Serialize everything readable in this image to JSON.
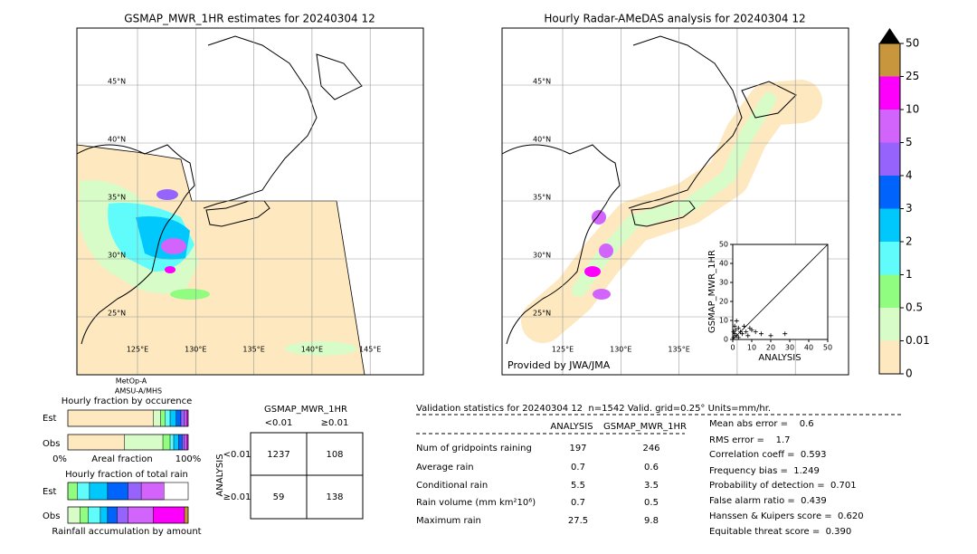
{
  "left_map": {
    "title": "GSMAP_MWR_1HR estimates for 20240304 12",
    "lat_labels": [
      "45°N",
      "40°N",
      "35°N",
      "30°N",
      "25°N"
    ],
    "lon_labels": [
      "125°E",
      "130°E",
      "135°E",
      "140°E",
      "145°E"
    ],
    "satellite": [
      "MetOp-A",
      "AMSU-A/MHS"
    ]
  },
  "right_map": {
    "title": "Hourly Radar-AMeDAS analysis for 20240304 12",
    "lat_labels": [
      "45°N",
      "40°N",
      "35°N",
      "30°N",
      "25°N"
    ],
    "lon_labels": [
      "125°E",
      "130°E",
      "135°E"
    ],
    "credit": "Provided by JWA/JMA"
  },
  "colorbar": {
    "labels": [
      "0",
      "0.01",
      "0.5",
      "1",
      "2",
      "3",
      "4",
      "5",
      "10",
      "25",
      "50"
    ],
    "colors": [
      "#fde8c0",
      "#d8fcc8",
      "#90fc80",
      "#60fcfc",
      "#00c8fc",
      "#0064fc",
      "#9664fc",
      "#d264fc",
      "#fc00fc",
      "#c8963c"
    ],
    "over_color": "#000000"
  },
  "fraction_occurrence": {
    "title": "Hourly fraction by occurence",
    "rows": [
      "Est",
      "Obs"
    ],
    "axis_labels": [
      "0%",
      "Areal fraction",
      "100%"
    ],
    "est": [
      71,
      6,
      4,
      4,
      5,
      4,
      3,
      2,
      1,
      0
    ],
    "obs": [
      47,
      32,
      6,
      3,
      4,
      3,
      2,
      2,
      1,
      0
    ]
  },
  "fraction_total": {
    "title": "Hourly fraction of total rain",
    "rows": [
      "Est",
      "Obs"
    ],
    "footer": "Rainfall accumulation by amount",
    "est": [
      0,
      0,
      8,
      10,
      15,
      17,
      11,
      19,
      0,
      0
    ],
    "obs": [
      0,
      10,
      7,
      10,
      6,
      8,
      9,
      21,
      26,
      3
    ]
  },
  "contingency": {
    "title": "GSMAP_MWR_1HR",
    "columns": [
      "<0.01",
      "≥0.01"
    ],
    "side_label": "ANALYSIS",
    "rows": [
      "<0.01",
      "≥0.01"
    ],
    "cells": [
      [
        "1237",
        "108"
      ],
      [
        "59",
        "138"
      ]
    ]
  },
  "validation": {
    "header": "Validation statistics for 20240304 12  n=1542 Valid. grid=0.25° Units=mm/hr.",
    "columns": [
      "ANALYSIS",
      "GSMAP_MWR_1HR"
    ],
    "rows": [
      {
        "label": "Num of gridpoints raining",
        "values": [
          "197",
          "246"
        ]
      },
      {
        "label": "Average rain",
        "values": [
          "0.7",
          "0.6"
        ]
      },
      {
        "label": "Conditional rain",
        "values": [
          "5.5",
          "3.5"
        ]
      },
      {
        "label": "Rain volume (mm km²10⁶)",
        "values": [
          "0.7",
          "0.5"
        ]
      },
      {
        "label": "Maximum rain",
        "values": [
          "27.5",
          "9.8"
        ]
      }
    ],
    "scores": [
      "Mean abs error =    0.6",
      "RMS error =    1.7",
      "Correlation coeff =  0.593",
      "Frequency bias =  1.249",
      "Probability of detection =  0.701",
      "False alarm ratio =  0.439",
      "Hanssen & Kuipers score =  0.620",
      "Equitable threat score =  0.390"
    ]
  },
  "chart_data": {
    "type": "scatter",
    "xlabel": "ANALYSIS",
    "ylabel": "GSMAP_MWR_1HR",
    "x": [
      0.5,
      1,
      1.5,
      2,
      3,
      4,
      5,
      6,
      8,
      10,
      12,
      15,
      20,
      27.5,
      2,
      1,
      3,
      7,
      9,
      0.5
    ],
    "values": [
      1,
      3,
      5,
      2,
      6,
      4,
      3,
      7,
      2,
      5,
      4,
      3,
      2,
      3,
      9.8,
      7,
      1,
      4,
      6,
      4
    ],
    "xlim": [
      0,
      50
    ],
    "ylim": [
      0,
      50
    ],
    "xticks": [
      0,
      10,
      20,
      30,
      40,
      50
    ],
    "yticks": [
      0,
      10,
      20,
      30,
      40,
      50
    ],
    "color": "#000000"
  }
}
